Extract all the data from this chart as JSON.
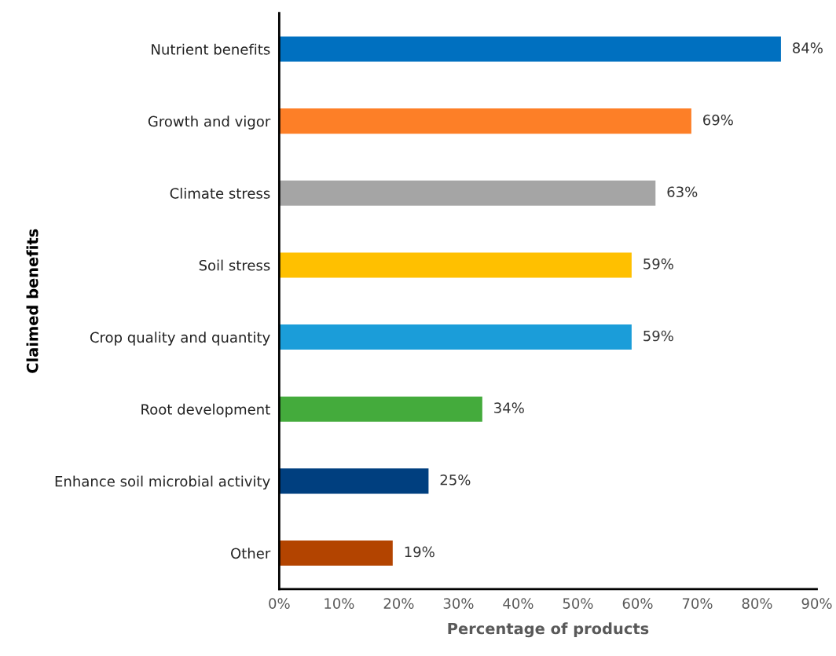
{
  "chart_data": {
    "type": "bar",
    "orientation": "horizontal",
    "xlabel": "Percentage of products",
    "ylabel": "Claimed benefits",
    "categories": [
      "Nutrient benefits",
      "Growth and vigor",
      "Climate stress",
      "Soil stress",
      "Crop quality and quantity",
      "Root development",
      "Enhance soil microbial activity",
      "Other"
    ],
    "values": [
      84,
      69,
      63,
      59,
      59,
      34,
      25,
      19
    ],
    "value_labels": [
      "84%",
      "69%",
      "63%",
      "59%",
      "59%",
      "34%",
      "25%",
      "19%"
    ],
    "colors": [
      "#0070c0",
      "#fd7f27",
      "#a5a5a5",
      "#ffc000",
      "#1b9dd9",
      "#44ab3c",
      "#003f7f",
      "#b34400"
    ],
    "xlim": [
      0,
      90
    ],
    "xticks": [
      {
        "value": 0,
        "label": "0%"
      },
      {
        "value": 10,
        "label": "10%"
      },
      {
        "value": 20,
        "label": "20%"
      },
      {
        "value": 30,
        "label": "30%"
      },
      {
        "value": 40,
        "label": "40%"
      },
      {
        "value": 50,
        "label": "50%"
      },
      {
        "value": 60,
        "label": "60%"
      },
      {
        "value": 70,
        "label": "70%"
      },
      {
        "value": 80,
        "label": "80%"
      },
      {
        "value": 90,
        "label": "90%"
      }
    ],
    "grid": false,
    "legend": false
  }
}
